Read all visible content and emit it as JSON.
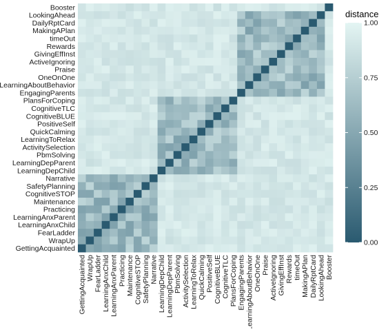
{
  "chart_data": {
    "type": "heatmap",
    "title": "",
    "xlabel": "",
    "ylabel": "",
    "labels": [
      "GettingAcquainted",
      "WrapUp",
      "FearLadder",
      "LearningAnxChild",
      "LearningAnxParent",
      "Practicing",
      "Maintenance",
      "CognitiveSTOP",
      "SafetyPlanning",
      "Narrative",
      "LearningDepChild",
      "LearningDepParent",
      "PbmSolving",
      "ActivitySelection",
      "LearningToRelax",
      "QuickCalming",
      "PositiveSelf",
      "CognitiveBLUE",
      "CognitiveTLC",
      "PlansForCoping",
      "EngagingParents",
      "LearningAboutBehavior",
      "OneOnOne",
      "Praise",
      "ActiveIgnoring",
      "GivingEffInst",
      "Rewards",
      "timeOut",
      "MakingAPlan",
      "DailyRptCard",
      "LookingAhead",
      "Booster"
    ],
    "groups": [
      [
        0,
        9
      ],
      [
        10,
        19
      ],
      [
        20,
        30
      ],
      [
        31,
        31
      ]
    ],
    "value_range": [
      0,
      1
    ],
    "legend": {
      "title": "distance",
      "ticks": [
        "0.00",
        "0.25",
        "0.50",
        "0.75",
        "1.00"
      ],
      "tick_values": [
        0,
        0.25,
        0.5,
        0.75,
        1
      ],
      "color_low": "#2a5a70",
      "color_high": "#e4f5f3",
      "placement": "right"
    },
    "diagonal_value": 0,
    "within_group_range": [
      0.45,
      0.8
    ],
    "between_group_range": [
      0.85,
      0.97
    ]
  }
}
